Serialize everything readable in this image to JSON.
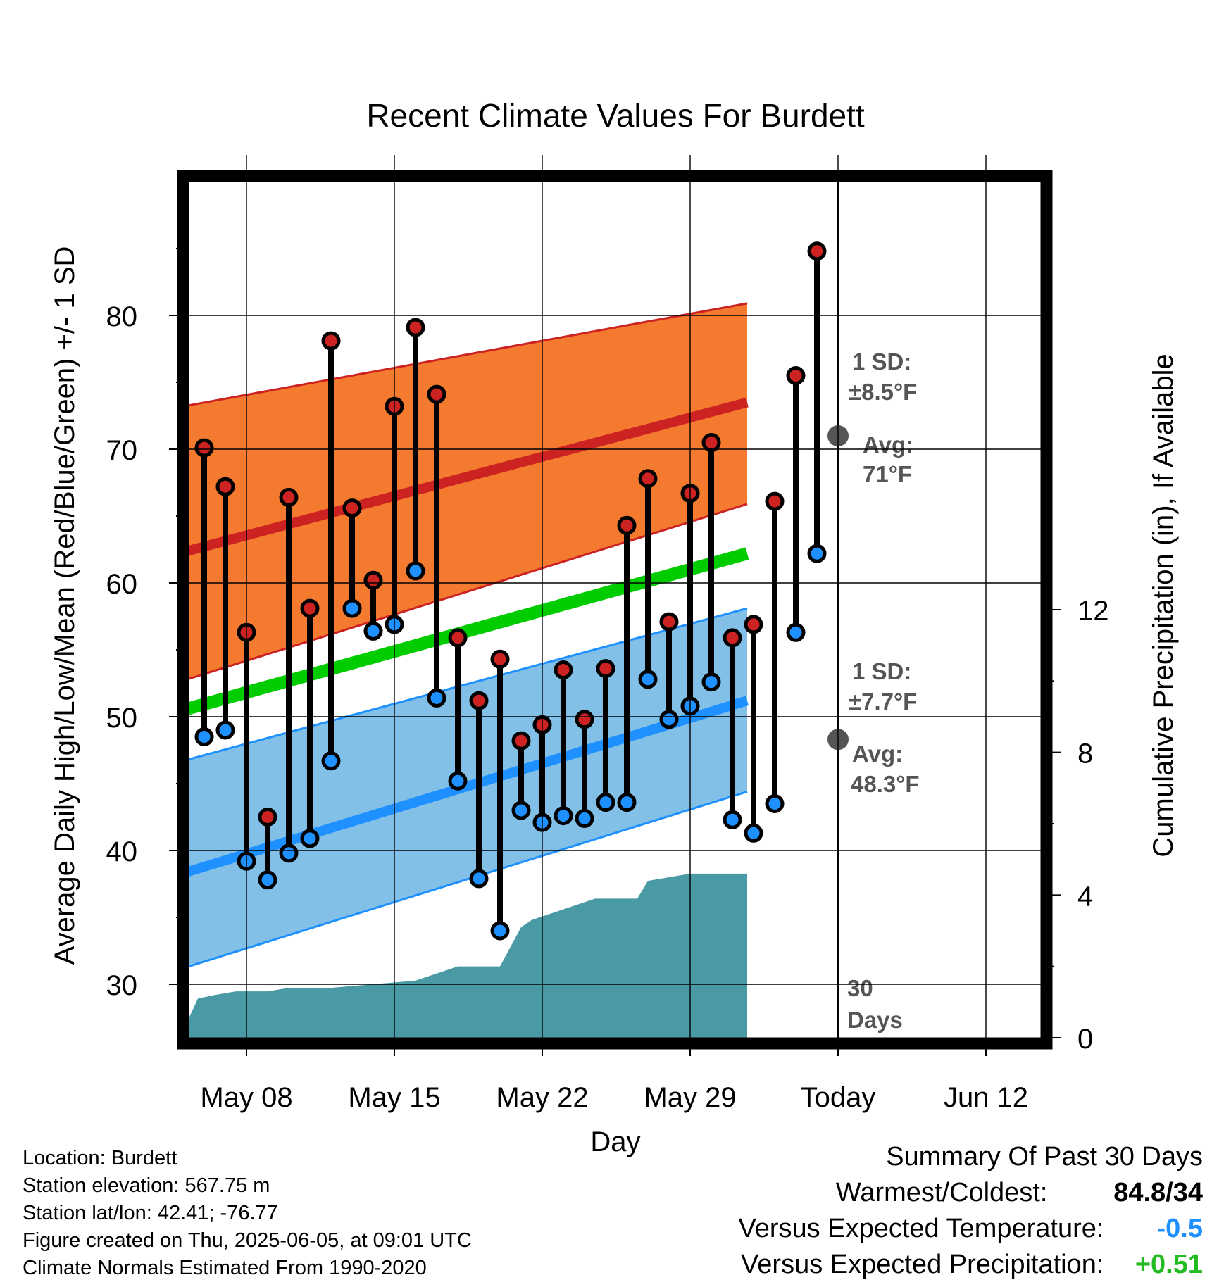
{
  "chart_data": {
    "type": "line",
    "title": "Recent Climate Values For Burdett",
    "xlabel": "Day",
    "ylabel": "Average Daily High/Low/Mean (Red/Blue/Green) +/- 1 SD",
    "ylabel_right": "Cumulative Precipitation (in), If Available",
    "x_tick_labels": [
      "May 08",
      "May 15",
      "May 22",
      "May 29",
      "Today",
      "Jun 12"
    ],
    "y_ticks": [
      30,
      40,
      50,
      60,
      70,
      80
    ],
    "y_ticks_right": [
      0,
      4,
      8,
      12
    ],
    "ylim": [
      26,
      90
    ],
    "ylim_right": [
      0,
      24
    ],
    "x_range_days": [
      -36.2,
      -4.3
    ],
    "today_offset_days": 0,
    "grid": true,
    "daily_observations": {
      "day_offset": [
        -30,
        -29,
        -28,
        -27,
        -26,
        -25,
        -24,
        -23,
        -22,
        -21,
        -20,
        -19,
        -18,
        -17,
        -16,
        -15,
        -14,
        -13,
        -12,
        -11,
        -10,
        -9,
        -8,
        -7,
        -6,
        -5,
        -4,
        -3,
        -2,
        -1
      ],
      "high": [
        70.1,
        67.2,
        56.3,
        42.5,
        66.4,
        58.1,
        78.1,
        65.6,
        60.2,
        73.2,
        79.1,
        74.1,
        55.9,
        51.2,
        54.3,
        48.2,
        49.4,
        53.5,
        49.8,
        53.6,
        64.3,
        67.8,
        57.1,
        66.7,
        70.5,
        55.9,
        56.9,
        66.1,
        75.5,
        84.8
      ],
      "low": [
        48.5,
        49.0,
        39.2,
        37.8,
        39.8,
        40.9,
        46.7,
        58.1,
        56.4,
        56.9,
        60.9,
        51.4,
        45.2,
        37.9,
        34.0,
        43.0,
        42.1,
        42.6,
        42.4,
        43.6,
        43.6,
        52.8,
        49.8,
        50.8,
        52.6,
        42.3,
        41.3,
        43.5,
        56.3,
        62.2
      ]
    },
    "normals": {
      "x": [
        -31.0,
        -4.3
      ],
      "high_avg": [
        62.3,
        73.5
      ],
      "high_upper": [
        73.2,
        80.9
      ],
      "high_lower": [
        52.7,
        65.9
      ],
      "low_avg": [
        38.3,
        51.2
      ],
      "low_upper": [
        46.7,
        58.1
      ],
      "low_lower": [
        31.2,
        44.4
      ],
      "mean_avg": [
        50.5,
        62.2
      ]
    },
    "precipitation": {
      "x": [
        -31.0,
        -30.3,
        -29.5,
        -28.5,
        -27.0,
        -26.0,
        -24.0,
        -22.0,
        -20.0,
        -19.0,
        -18.0,
        -17.0,
        -16.0,
        -15.0,
        -14.5,
        -13.5,
        -12.5,
        -11.5,
        -10.5,
        -9.5,
        -9.0,
        -8.0,
        -7.0,
        -6.0,
        -5.0,
        -4.3
      ],
      "inches": [
        0.2,
        1.1,
        1.2,
        1.3,
        1.3,
        1.4,
        1.4,
        1.5,
        1.6,
        1.8,
        2.0,
        2.0,
        2.0,
        3.1,
        3.3,
        3.5,
        3.7,
        3.9,
        3.9,
        3.9,
        4.4,
        4.5,
        4.6,
        4.6,
        4.6,
        4.6
      ]
    },
    "series": [
      {
        "name": "High",
        "color": "#cc2222"
      },
      {
        "name": "Low",
        "color": "#1e90ff"
      },
      {
        "name": "Mean",
        "color": "#00cc00"
      }
    ],
    "colors": {
      "high_band": "#f47a30",
      "high_avg": "#cc2222",
      "low_band": "#82c0e8",
      "low_avg": "#1e90ff",
      "mean_avg": "#00cc00",
      "precip": "#4a9aa6",
      "annotation": "#555555",
      "avg_marker": "#555555"
    },
    "annotations": {
      "high_sd_line1": "1 SD:",
      "high_sd_line2": "±8.5°F",
      "high_avg_line1": "Avg:",
      "high_avg_line2": "71°F",
      "high_avg_value": 71.0,
      "low_sd_line1": "1 SD:",
      "low_sd_line2": "±7.7°F",
      "low_avg_line1": "Avg:",
      "low_avg_line2": "48.3°F",
      "low_avg_value": 48.3,
      "days_line1": "30",
      "days_line2": "Days"
    }
  },
  "footer": {
    "location": "Location: Burdett",
    "elevation": "Station elevation: 567.75 m",
    "latlon": "Station lat/lon: 42.41; -76.77",
    "created": "Figure created on Thu, 2025-06-05, at 09:01 UTC",
    "normals": "Climate Normals Estimated From 1990-2020"
  },
  "summary": {
    "title": "Summary Of Past 30 Days",
    "warmest_coldest_label": "Warmest/Coldest:",
    "warmest_coldest_value": "84.8/34",
    "temp_label": "Versus Expected Temperature:",
    "temp_value": "-0.5",
    "temp_color": "#1e90ff",
    "precip_label": "Versus Expected Precipitation:",
    "precip_value": "+0.51",
    "precip_color": "#22bb22"
  }
}
